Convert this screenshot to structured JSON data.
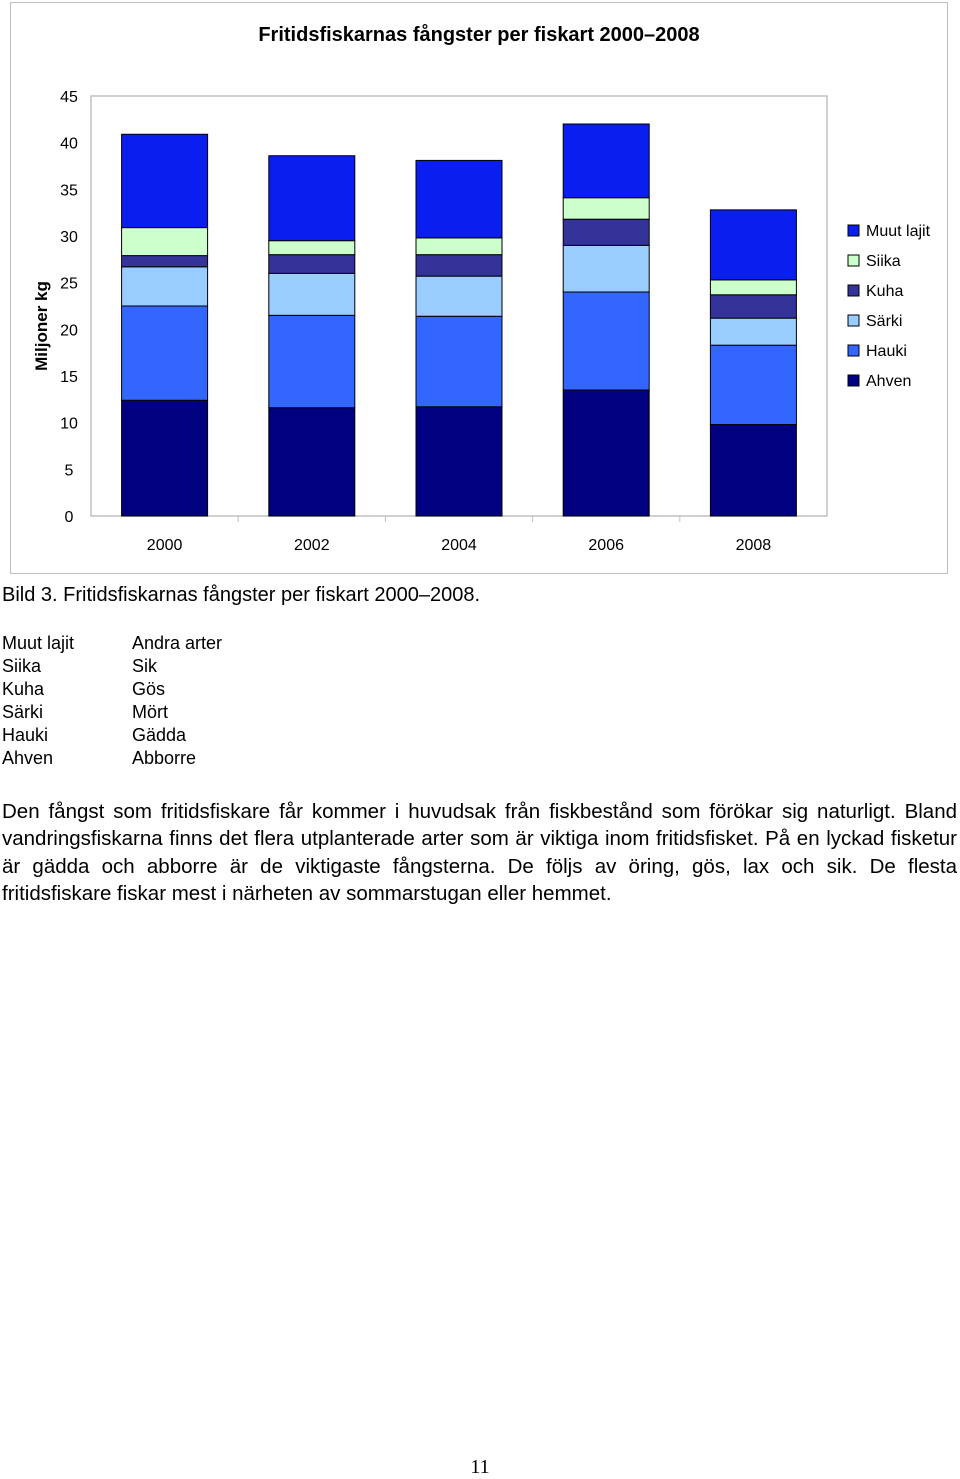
{
  "chart_data": {
    "type": "bar",
    "stacked": true,
    "title": "Fritidsfiskarnas fångster per fiskart 2000–2008",
    "xlabel": "",
    "ylabel": "Miljoner kg",
    "ylim": [
      0,
      45
    ],
    "yticks": [
      0,
      5,
      10,
      15,
      20,
      25,
      30,
      35,
      40,
      45
    ],
    "categories": [
      "2000",
      "2002",
      "2004",
      "2006",
      "2008"
    ],
    "grid": false,
    "legend_position": "right",
    "legend_order": [
      "Muut lajit",
      "Siika",
      "Kuha",
      "Särki",
      "Hauki",
      "Ahven"
    ],
    "series": [
      {
        "name": "Ahven",
        "color": "#000080",
        "values": [
          12.4,
          11.6,
          11.7,
          13.5,
          9.8
        ]
      },
      {
        "name": "Hauki",
        "color": "#3366ff",
        "values": [
          10.1,
          9.9,
          9.7,
          10.5,
          8.5
        ]
      },
      {
        "name": "Särki",
        "color": "#99ccff",
        "values": [
          4.2,
          4.5,
          4.3,
          5.0,
          2.9
        ]
      },
      {
        "name": "Kuha",
        "color": "#333399",
        "values": [
          1.2,
          2.0,
          2.3,
          2.8,
          2.5
        ]
      },
      {
        "name": "Siika",
        "color": "#ccffcc",
        "values": [
          3.0,
          1.5,
          1.8,
          2.3,
          1.6
        ]
      },
      {
        "name": "Muut lajit",
        "color": "#0a1ef0",
        "values": [
          10.0,
          9.1,
          8.3,
          7.9,
          7.5
        ]
      }
    ]
  },
  "caption": "Bild 3. Fritidsfiskarnas fångster per fiskart 2000–2008.",
  "translation": {
    "finnish": [
      "Muut lajit",
      "Siika",
      "Kuha",
      "Särki",
      "Hauki",
      "Ahven"
    ],
    "swedish": [
      "Andra arter",
      "Sik",
      "Gös",
      "Mört",
      "Gädda",
      "Abborre"
    ]
  },
  "body_text": "Den fångst som fritidsfiskare får kommer i huvudsak från fiskbestånd som förökar sig naturligt. Bland vandringsfiskarna finns det flera utplanterade arter som är viktiga inom fritidsfisket. På en lyckad fisketur är gädda och abborre är de viktigaste fångsterna. De följs av öring, gös, lax och sik. De flesta fritidsfiskare fiskar mest i närheten av sommarstugan eller hemmet.",
  "page_number": "11"
}
